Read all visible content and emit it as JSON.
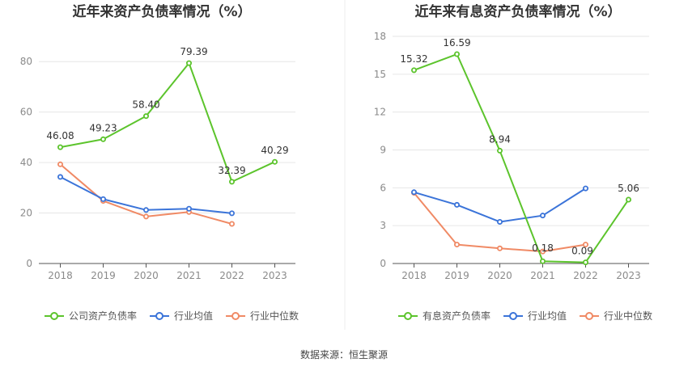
{
  "source": "数据来源：恒生聚源",
  "colors": {
    "main": "#5cc42c",
    "avg": "#3b74d9",
    "median": "#f08a65"
  },
  "chart_data": [
    {
      "type": "line",
      "title": "近年来资产负债率情况（%）",
      "categories": [
        "2018",
        "2019",
        "2020",
        "2021",
        "2022",
        "2023"
      ],
      "ylim": [
        0,
        90
      ],
      "yticks": [
        0,
        20,
        40,
        60,
        80
      ],
      "grid": true,
      "legend_position": "bottom",
      "series": [
        {
          "name": "公司资产负债率",
          "color": "#5cc42c",
          "labeled": true,
          "values": [
            46.08,
            49.23,
            58.4,
            79.39,
            32.39,
            40.29
          ],
          "labels": [
            "46.08",
            "49.23",
            "58.40",
            "79.39",
            "32.39",
            "40.29"
          ]
        },
        {
          "name": "行业均值",
          "color": "#3b74d9",
          "values": [
            34.3,
            25.5,
            21.2,
            21.7,
            19.9,
            null
          ]
        },
        {
          "name": "行业中位数",
          "color": "#f08a65",
          "values": [
            39.3,
            24.8,
            18.6,
            20.4,
            15.7,
            null
          ]
        }
      ]
    },
    {
      "type": "line",
      "title": "近年来有息资产负债率情况（%）",
      "categories": [
        "2018",
        "2019",
        "2020",
        "2021",
        "2022",
        "2023"
      ],
      "ylim": [
        0,
        18
      ],
      "yticks": [
        0,
        3,
        6,
        9,
        12,
        15,
        18
      ],
      "grid": true,
      "legend_position": "bottom",
      "series": [
        {
          "name": "有息资产负债率",
          "color": "#5cc42c",
          "labeled": true,
          "values": [
            15.32,
            16.59,
            8.94,
            0.18,
            0.09,
            5.06
          ],
          "labels": [
            "15.32",
            "16.59",
            "8.94",
            "0.18",
            "0.09",
            "5.06"
          ]
        },
        {
          "name": "行业均值",
          "color": "#3b74d9",
          "values": [
            5.65,
            4.65,
            3.3,
            3.8,
            5.95,
            null
          ]
        },
        {
          "name": "行业中位数",
          "color": "#f08a65",
          "values": [
            5.6,
            1.5,
            1.2,
            0.95,
            1.5,
            null
          ]
        }
      ]
    }
  ]
}
